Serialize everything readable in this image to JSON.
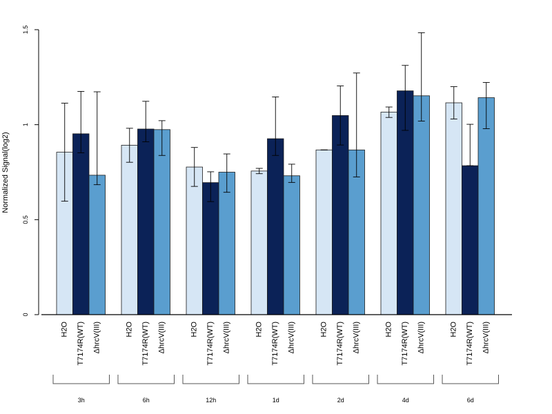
{
  "chart_data": {
    "type": "bar",
    "title": "",
    "xlabel": "",
    "ylabel": "Normalized Signal(log2)",
    "ylim": [
      0,
      1.5
    ],
    "yticks": [
      0,
      0.5,
      1,
      1.5
    ],
    "ytick_labels": [
      "0",
      "0.5",
      "1",
      "1.5"
    ],
    "groups": [
      "3h",
      "6h",
      "12h",
      "1d",
      "2d",
      "4d",
      "6d"
    ],
    "conditions": [
      "H2O",
      "T7174R(WT)",
      "ΔhrcV(III)"
    ],
    "colors": [
      "#d6e6f5",
      "#0b2257",
      "#5a9ecf"
    ],
    "series": [
      {
        "name": "H2O",
        "values": [
          0.855,
          0.892,
          0.777,
          0.756,
          0.867,
          1.066,
          1.115
        ],
        "err_low": [
          0.597,
          0.802,
          0.675,
          0.742,
          0.867,
          1.038,
          1.03
        ],
        "err_high": [
          1.113,
          0.981,
          0.88,
          0.77,
          0.867,
          1.093,
          1.2
        ]
      },
      {
        "name": "T7174R(WT)",
        "values": [
          0.952,
          0.977,
          0.695,
          0.926,
          1.048,
          1.178,
          0.784
        ],
        "err_low": [
          0.852,
          0.91,
          0.595,
          0.838,
          0.893,
          0.97,
          0.784
        ],
        "err_high": [
          1.175,
          1.123,
          0.752,
          1.146,
          1.204,
          1.312,
          1.002
        ]
      },
      {
        "name": "ΔhrcV(III)",
        "values": [
          0.734,
          0.974,
          0.75,
          0.731,
          0.867,
          1.152,
          1.142
        ],
        "err_low": [
          0.684,
          0.838,
          0.644,
          0.696,
          0.725,
          1.019,
          0.979
        ],
        "err_high": [
          1.173,
          1.021,
          0.846,
          0.792,
          1.272,
          1.484,
          1.222
        ]
      }
    ],
    "grid": false,
    "legend": "none"
  }
}
